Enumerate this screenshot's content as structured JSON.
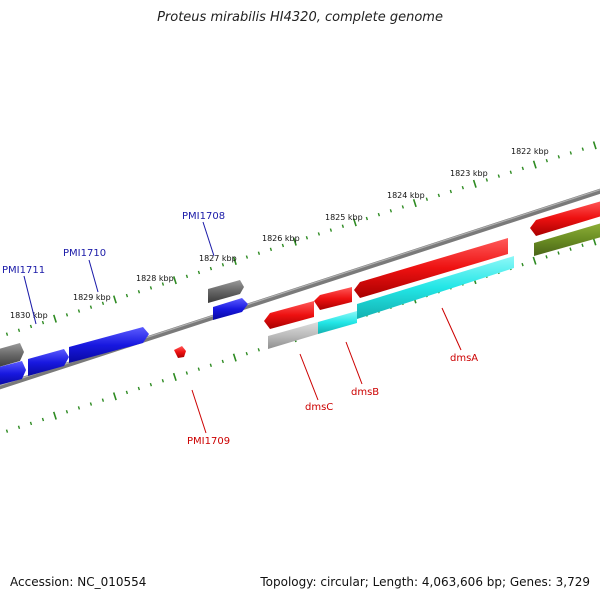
{
  "title": "Proteus mirabilis HI4320, complete genome",
  "footer": {
    "accession": "Accession: NC_010554",
    "summary": "Topology: circular; Length: 4,063,606 bp; Genes: 3,729"
  },
  "ruler_labels": [
    "1822 kbp",
    "1823 kbp",
    "1824 kbp",
    "1825 kbp",
    "1826 kbp",
    "1827 kbp",
    "1828 kbp",
    "1829 kbp",
    "1830 kbp"
  ],
  "gene_labels": {
    "PMI1708": "PMI1708",
    "PMI1710": "PMI1710",
    "PMI1711": "PMI1711",
    "PMI1709": "PMI1709",
    "dmsC": "dmsC",
    "dmsB": "dmsB",
    "dmsA": "dmsA"
  },
  "colors": {
    "backbone": "#7a7a7a",
    "ruler_ticks": "#2e8b22",
    "gene_blue": "#1818e0",
    "gene_red": "#ee1111",
    "gene_cyan": "#22e6e6",
    "gene_gray": "#666666",
    "gene_lightgray": "#bbbbbb",
    "gene_olive": "#6b8e23",
    "label_blue": "#1a1aa8",
    "label_red": "#cc0000"
  }
}
